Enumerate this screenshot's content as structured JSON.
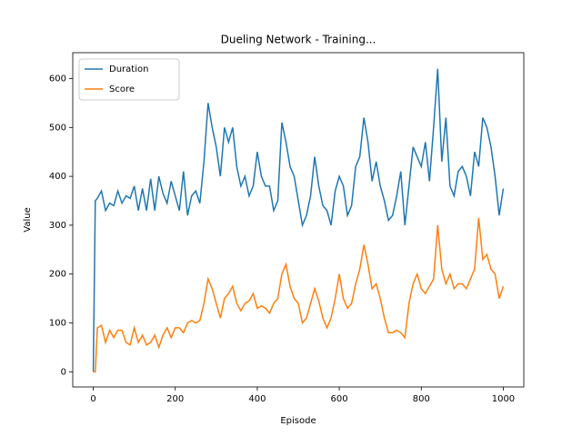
{
  "chart_data": {
    "type": "line",
    "title": "Dueling Network - Training...",
    "x_label": "Episode",
    "y_label": "Value",
    "x": [
      0,
      5,
      10,
      20,
      30,
      40,
      50,
      60,
      70,
      80,
      90,
      100,
      110,
      120,
      130,
      140,
      150,
      160,
      170,
      180,
      190,
      200,
      210,
      220,
      230,
      240,
      250,
      260,
      270,
      280,
      290,
      300,
      310,
      320,
      330,
      340,
      350,
      360,
      370,
      380,
      390,
      400,
      410,
      420,
      430,
      440,
      450,
      460,
      470,
      480,
      490,
      500,
      510,
      520,
      530,
      540,
      550,
      560,
      570,
      580,
      590,
      600,
      610,
      620,
      630,
      640,
      650,
      660,
      670,
      680,
      690,
      700,
      710,
      720,
      730,
      740,
      750,
      760,
      770,
      780,
      790,
      800,
      810,
      820,
      830,
      840,
      850,
      860,
      870,
      880,
      890,
      900,
      910,
      920,
      930,
      940,
      950,
      960,
      970,
      980,
      990,
      1000
    ],
    "series": [
      {
        "name": "Duration",
        "color": "#1f77b4",
        "values": [
          0,
          350,
          355,
          370,
          330,
          345,
          340,
          370,
          345,
          360,
          355,
          380,
          330,
          375,
          330,
          395,
          330,
          400,
          365,
          345,
          390,
          360,
          330,
          410,
          320,
          360,
          370,
          345,
          430,
          550,
          500,
          460,
          400,
          500,
          470,
          500,
          420,
          380,
          400,
          360,
          380,
          450,
          400,
          380,
          380,
          330,
          350,
          510,
          470,
          420,
          400,
          350,
          300,
          320,
          360,
          440,
          380,
          340,
          330,
          300,
          370,
          400,
          380,
          320,
          340,
          420,
          440,
          520,
          470,
          390,
          430,
          380,
          350,
          310,
          320,
          360,
          410,
          300,
          380,
          460,
          440,
          420,
          470,
          390,
          500,
          620,
          430,
          520,
          380,
          360,
          410,
          420,
          400,
          360,
          450,
          420,
          520,
          500,
          460,
          400,
          320,
          375
        ]
      },
      {
        "name": "Score",
        "color": "#ff7f0e",
        "values": [
          0,
          0,
          90,
          95,
          60,
          85,
          70,
          85,
          85,
          60,
          55,
          90,
          60,
          75,
          55,
          60,
          75,
          50,
          75,
          90,
          70,
          90,
          90,
          80,
          100,
          105,
          100,
          105,
          140,
          190,
          170,
          140,
          110,
          150,
          160,
          175,
          140,
          125,
          140,
          145,
          160,
          130,
          135,
          130,
          120,
          140,
          150,
          200,
          220,
          175,
          150,
          140,
          100,
          110,
          140,
          170,
          145,
          110,
          90,
          110,
          150,
          200,
          150,
          130,
          140,
          180,
          210,
          260,
          220,
          170,
          180,
          150,
          110,
          80,
          80,
          85,
          80,
          70,
          140,
          180,
          200,
          170,
          160,
          175,
          190,
          300,
          210,
          180,
          200,
          170,
          180,
          180,
          170,
          190,
          210,
          315,
          230,
          240,
          210,
          200,
          150,
          175
        ]
      }
    ],
    "xlim": [
      -50,
      1050
    ],
    "ylim": [
      -31,
      653
    ],
    "xticks": [
      0,
      200,
      400,
      600,
      800,
      1000
    ],
    "yticks": [
      0,
      100,
      200,
      300,
      400,
      500,
      600
    ],
    "legend": "upper left"
  }
}
